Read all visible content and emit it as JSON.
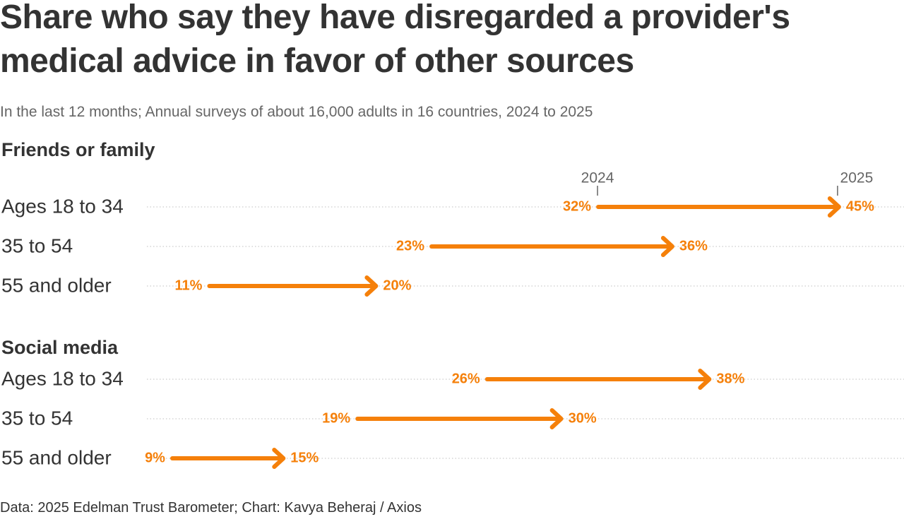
{
  "title": "Share who say they have disregarded a provider's medical advice in favor of other sources",
  "subtitle": "In the last 12 months; Annual surveys of about 16,000 adults in 16 countries, 2024 to 2025",
  "source": "Data: 2025 Edelman Trust Barometer; Chart: Kavya Beheraj / Axios",
  "colors": {
    "accent": "#f5800a",
    "grid": "#cccccc",
    "text": "#333333",
    "muted": "#666666"
  },
  "chart_data": {
    "type": "arrow",
    "start_label": "2024",
    "end_label": "2025",
    "unit": "%",
    "xlim": [
      0,
      52
    ],
    "groups": [
      {
        "title": "Friends or family",
        "rows": [
          {
            "label": "Ages 18 to 34",
            "start": 32,
            "end": 45,
            "start_text": "32%",
            "end_text": "45%"
          },
          {
            "label": "35 to 54",
            "start": 23,
            "end": 36,
            "start_text": "23%",
            "end_text": "36%"
          },
          {
            "label": "55 and older",
            "start": 11,
            "end": 20,
            "start_text": "11%",
            "end_text": "20%"
          }
        ]
      },
      {
        "title": "Social media",
        "rows": [
          {
            "label": "Ages 18 to 34",
            "start": 26,
            "end": 38,
            "start_text": "26%",
            "end_text": "38%"
          },
          {
            "label": "35 to 54",
            "start": 19,
            "end": 30,
            "start_text": "19%",
            "end_text": "30%"
          },
          {
            "label": "55 and older",
            "start": 9,
            "end": 15,
            "start_text": "9%",
            "end_text": "15%"
          }
        ]
      }
    ]
  }
}
